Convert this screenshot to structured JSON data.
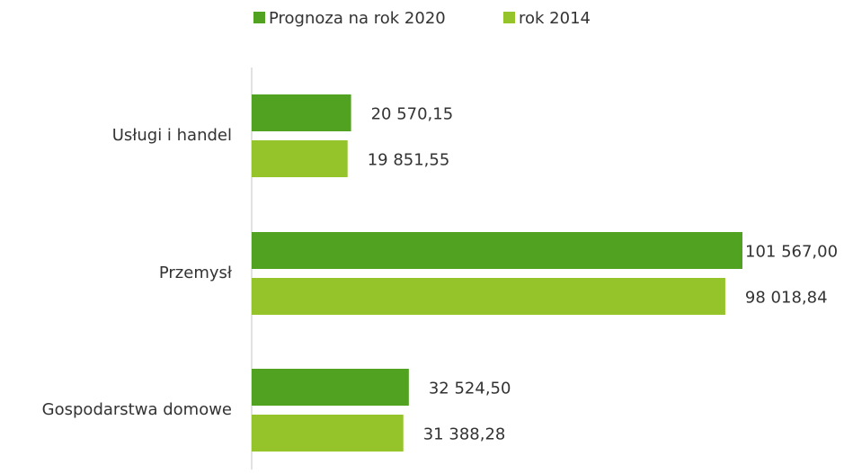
{
  "chart_data": {
    "type": "barh",
    "categories": [
      "Usługi i handel",
      "Przemysł",
      "Gospodarstwa domowe"
    ],
    "series": [
      {
        "name": "Prognoza na rok 2020",
        "color": "#52a221",
        "values": [
          20570.15,
          101567.0,
          32524.5
        ],
        "value_labels": [
          "20 570,15",
          "101 567,00",
          "32 524,50"
        ]
      },
      {
        "name": "rok 2014",
        "color": "#94c42a",
        "values": [
          19851.55,
          98018.84,
          31388.28
        ],
        "value_labels": [
          "19 851,55",
          "98 018,84",
          "31 388,28"
        ]
      }
    ],
    "legend": "top"
  }
}
